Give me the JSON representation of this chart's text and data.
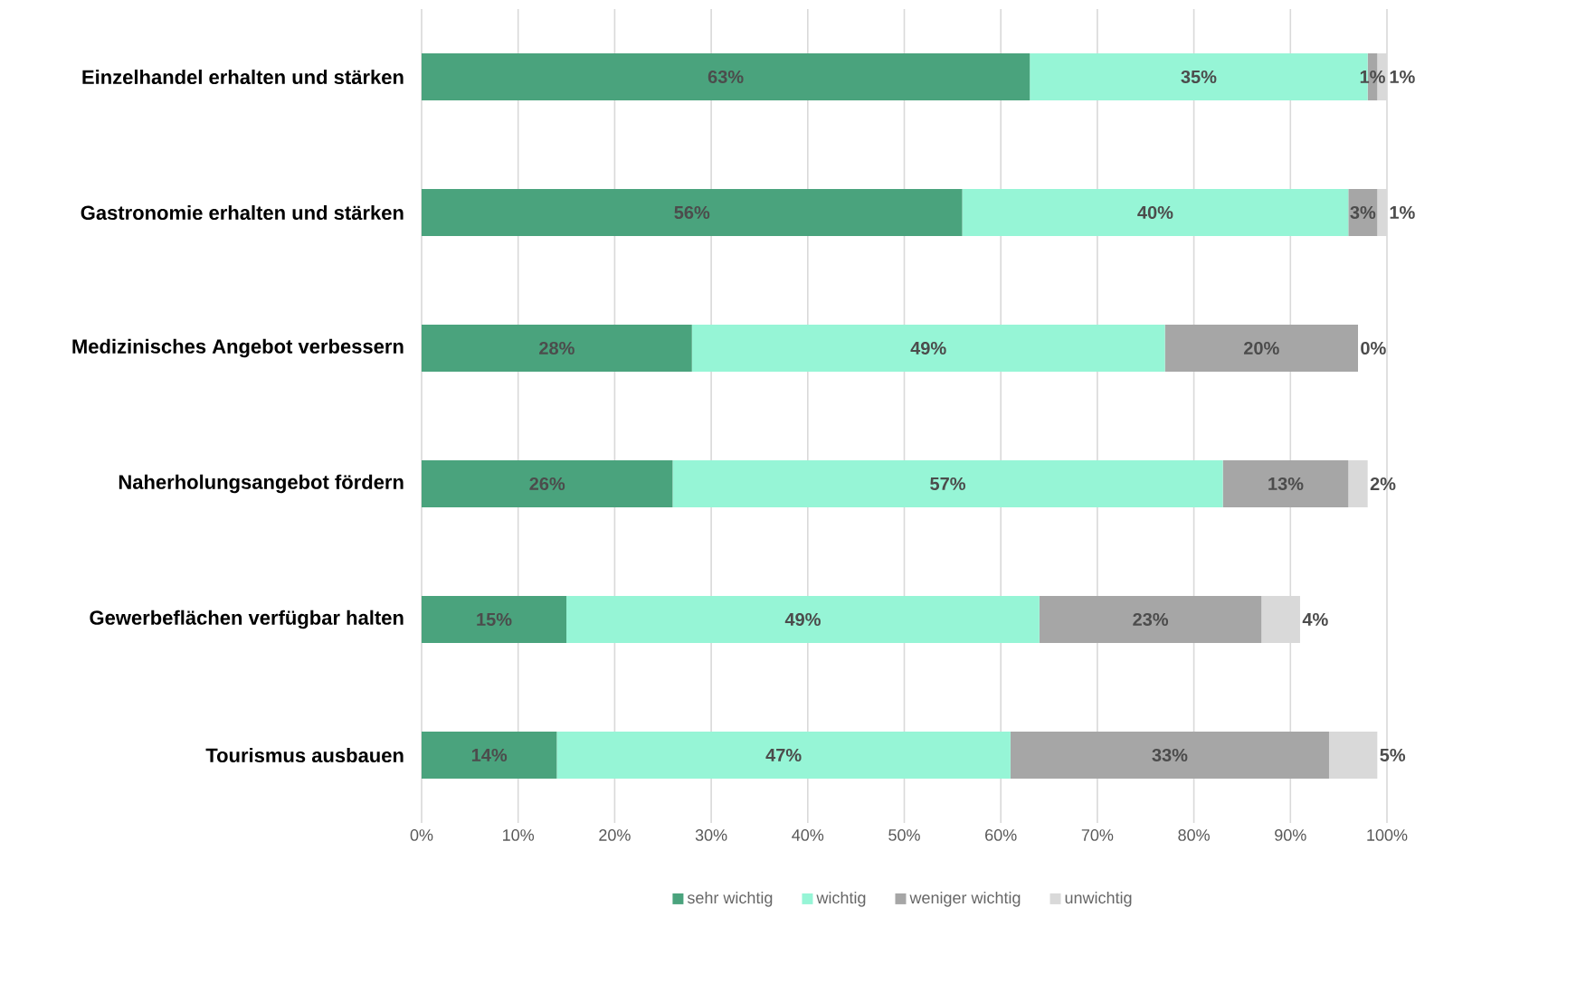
{
  "chart_data": {
    "type": "bar",
    "orientation": "horizontal",
    "stacked": true,
    "categories": [
      "Einzelhandel erhalten und stärken",
      "Gastronomie erhalten und stärken",
      "Medizinisches Angebot verbessern",
      "Naherholungsangebot fördern",
      "Gewerbeflächen verfügbar halten",
      "Tourismus ausbauen"
    ],
    "series": [
      {
        "name": "sehr wichtig",
        "color": "#4aa37d",
        "values": [
          63,
          56,
          28,
          26,
          15,
          14
        ],
        "value_labels": [
          "63%",
          "56%",
          "28%",
          "26%",
          "15%",
          "14%"
        ]
      },
      {
        "name": "wichtig",
        "color": "#96f5d6",
        "values": [
          35,
          40,
          49,
          57,
          49,
          47
        ],
        "value_labels": [
          "35%",
          "40%",
          "49%",
          "57%",
          "49%",
          "47%"
        ]
      },
      {
        "name": "weniger wichtig",
        "color": "#a6a6a6",
        "values": [
          1,
          3,
          20,
          13,
          23,
          33
        ],
        "value_labels": [
          "1%",
          "3%",
          "20%",
          "13%",
          "23%",
          "33%"
        ]
      },
      {
        "name": "unwichtig",
        "color": "#d9d9d9",
        "values": [
          1,
          1,
          0,
          2,
          4,
          5
        ],
        "value_labels": [
          "1%",
          "1%",
          "0%",
          "2%",
          "4%",
          "5%"
        ]
      }
    ],
    "xlim": [
      0,
      100
    ],
    "xticks": [
      {
        "value": 0,
        "label": "0%"
      },
      {
        "value": 10,
        "label": "10%"
      },
      {
        "value": 20,
        "label": "20%"
      },
      {
        "value": 30,
        "label": "30%"
      },
      {
        "value": 40,
        "label": "40%"
      },
      {
        "value": 50,
        "label": "50%"
      },
      {
        "value": 60,
        "label": "60%"
      },
      {
        "value": 70,
        "label": "70%"
      },
      {
        "value": 80,
        "label": "80%"
      },
      {
        "value": 90,
        "label": "90%"
      },
      {
        "value": 100,
        "label": "100%"
      }
    ],
    "grid": "x",
    "legend": "bottom"
  }
}
